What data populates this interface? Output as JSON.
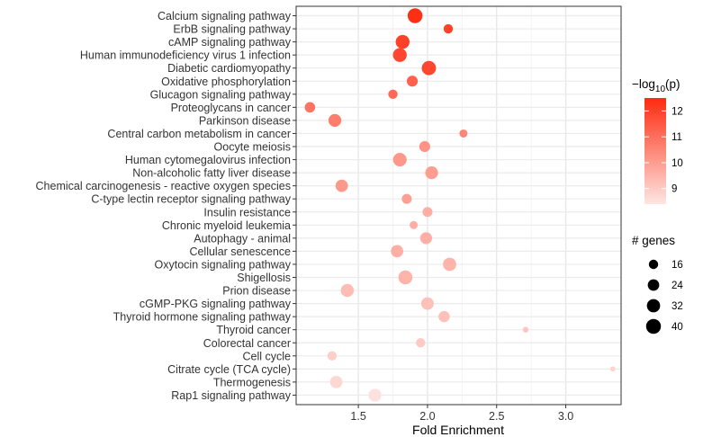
{
  "chart_data": {
    "type": "scatter",
    "title": "",
    "xlabel": "Fold Enrichment",
    "ylabel": "",
    "xlim": [
      1.05,
      3.4
    ],
    "xticks": [
      "1.5",
      "2.0",
      "2.5",
      "3.0"
    ],
    "grid": true,
    "legend_position": "right",
    "color_legend": {
      "title_prefix": "−log",
      "title_sub": "10",
      "title_suffix": "(p)",
      "range": [
        8.4,
        12.5
      ],
      "ticks": [
        "12",
        "11",
        "10",
        "9"
      ],
      "low_color": "#fde6e3",
      "high_color": "#ff2a0f"
    },
    "size_legend": {
      "title": "# genes",
      "sizes": [
        16,
        24,
        32,
        40
      ],
      "labels": [
        "16",
        "24",
        "32",
        "40"
      ]
    },
    "points": [
      {
        "pathway": "Calcium signaling pathway",
        "fold": 1.91,
        "logp": 12.4,
        "genes": 40
      },
      {
        "pathway": "ErbB signaling pathway",
        "fold": 2.15,
        "logp": 12.0,
        "genes": 16
      },
      {
        "pathway": "cAMP signaling pathway",
        "fold": 1.82,
        "logp": 12.0,
        "genes": 35
      },
      {
        "pathway": "Human immunodeficiency virus 1 infection",
        "fold": 1.8,
        "logp": 11.9,
        "genes": 35
      },
      {
        "pathway": "Diabetic cardiomyopathy",
        "fold": 2.01,
        "logp": 11.9,
        "genes": 37
      },
      {
        "pathway": "Oxidative phosphorylation",
        "fold": 1.89,
        "logp": 11.3,
        "genes": 22
      },
      {
        "pathway": "Glucagon signaling pathway",
        "fold": 1.75,
        "logp": 11.1,
        "genes": 16
      },
      {
        "pathway": "Proteoglycans in cancer",
        "fold": 1.15,
        "logp": 10.9,
        "genes": 20
      },
      {
        "pathway": "Parkinson disease",
        "fold": 1.33,
        "logp": 10.7,
        "genes": 30
      },
      {
        "pathway": "Central carbon metabolism in cancer",
        "fold": 2.26,
        "logp": 10.5,
        "genes": 12
      },
      {
        "pathway": "Oocyte meiosis",
        "fold": 1.98,
        "logp": 10.2,
        "genes": 22
      },
      {
        "pathway": "Human cytomegalovirus infection",
        "fold": 1.8,
        "logp": 10.1,
        "genes": 34
      },
      {
        "pathway": "Non-alcoholic fatty liver disease",
        "fold": 2.03,
        "logp": 10.0,
        "genes": 30
      },
      {
        "pathway": "Chemical carcinogenesis - reactive oxygen species",
        "fold": 1.38,
        "logp": 10.1,
        "genes": 28
      },
      {
        "pathway": "C-type lectin receptor signaling pathway",
        "fold": 1.85,
        "logp": 9.9,
        "genes": 18
      },
      {
        "pathway": "Insulin resistance",
        "fold": 2.0,
        "logp": 9.6,
        "genes": 18
      },
      {
        "pathway": "Chronic myeloid leukemia",
        "fold": 1.9,
        "logp": 9.6,
        "genes": 12
      },
      {
        "pathway": "Autophagy - animal",
        "fold": 1.99,
        "logp": 9.6,
        "genes": 26
      },
      {
        "pathway": "Cellular senescence",
        "fold": 1.78,
        "logp": 9.6,
        "genes": 28
      },
      {
        "pathway": "Oxytocin signaling pathway",
        "fold": 2.16,
        "logp": 9.5,
        "genes": 32
      },
      {
        "pathway": "Shigellosis",
        "fold": 1.84,
        "logp": 9.5,
        "genes": 36
      },
      {
        "pathway": "Prion disease",
        "fold": 1.42,
        "logp": 9.3,
        "genes": 31
      },
      {
        "pathway": "cGMP-PKG signaling pathway",
        "fold": 2.0,
        "logp": 9.2,
        "genes": 29
      },
      {
        "pathway": "Thyroid hormone signaling pathway",
        "fold": 2.12,
        "logp": 9.2,
        "genes": 23
      },
      {
        "pathway": "Thyroid cancer",
        "fold": 2.71,
        "logp": 9.1,
        "genes": 6
      },
      {
        "pathway": "Colorectal cancer",
        "fold": 1.95,
        "logp": 9.0,
        "genes": 16
      },
      {
        "pathway": "Cell cycle",
        "fold": 1.31,
        "logp": 8.9,
        "genes": 16
      },
      {
        "pathway": "Citrate cycle (TCA cycle)",
        "fold": 3.34,
        "logp": 8.8,
        "genes": 5
      },
      {
        "pathway": "Thermogenesis",
        "fold": 1.34,
        "logp": 8.7,
        "genes": 28
      },
      {
        "pathway": "Rap1 signaling pathway",
        "fold": 1.62,
        "logp": 8.5,
        "genes": 30
      }
    ]
  }
}
